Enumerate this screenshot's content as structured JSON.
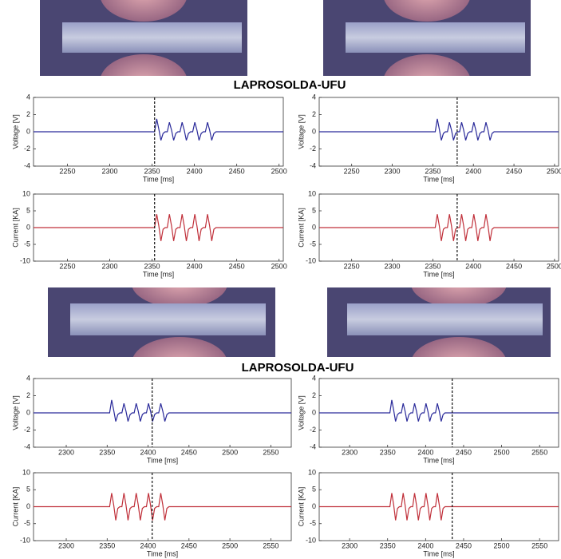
{
  "labels": [
    "LAPROSOLDA-UFU",
    "LAPROSOLDA-UFU"
  ],
  "chart_data": [
    {
      "type": "line",
      "ylabel": "Voltage [V]",
      "xlabel": "Time [ms]",
      "xlim": [
        2210,
        2505
      ],
      "xticks": [
        2250,
        2300,
        2350,
        2400,
        2450,
        2500
      ],
      "ylim": [
        -4,
        4
      ],
      "yticks": [
        -4,
        -2,
        0,
        2,
        4
      ],
      "marker_x": 2353,
      "x": [
        2210,
        2353,
        2355.5,
        2358,
        2360.5,
        2363,
        2365.5,
        2368,
        2370.5,
        2373,
        2375.5,
        2378,
        2380.5,
        2383,
        2385.5,
        2388,
        2390.5,
        2393,
        2395.5,
        2398,
        2400.5,
        2403,
        2405.5,
        2408,
        2410.5,
        2413,
        2415.5,
        2418,
        2420.5,
        2423,
        2425.5,
        2428,
        2505
      ],
      "series": [
        {
          "color": "#2a2a9a",
          "values": [
            0,
            0,
            1.5,
            0.3,
            -1.0,
            -0.2,
            0,
            0,
            1.1,
            0.2,
            -1.0,
            -0.2,
            0,
            0,
            1.1,
            0.2,
            -1.0,
            -0.2,
            0,
            0,
            1.1,
            0.2,
            -1.0,
            -0.2,
            0,
            0,
            1.1,
            0.2,
            -1.0,
            -0.2,
            0,
            0,
            0
          ]
        }
      ]
    },
    {
      "type": "line",
      "ylabel": "Voltage [V]",
      "xlabel": "Time [ms]",
      "xlim": [
        2210,
        2505
      ],
      "xticks": [
        2250,
        2300,
        2350,
        2400,
        2450,
        2500
      ],
      "ylim": [
        -4,
        4
      ],
      "yticks": [
        -4,
        -2,
        0,
        2,
        4
      ],
      "marker_x": 2380,
      "x": [
        2210,
        2353,
        2355.5,
        2358,
        2360.5,
        2363,
        2365.5,
        2368,
        2370.5,
        2373,
        2375.5,
        2378,
        2380.5,
        2383,
        2385.5,
        2388,
        2390.5,
        2393,
        2395.5,
        2398,
        2400.5,
        2403,
        2405.5,
        2408,
        2410.5,
        2413,
        2415.5,
        2418,
        2420.5,
        2423,
        2425.5,
        2428,
        2505
      ],
      "series": [
        {
          "color": "#2a2a9a",
          "values": [
            0,
            0,
            1.5,
            0.3,
            -1.0,
            -0.2,
            0,
            0,
            1.1,
            0.2,
            -1.0,
            -0.2,
            0,
            0,
            1.1,
            0.2,
            -1.0,
            -0.2,
            0,
            0,
            1.1,
            0.2,
            -1.0,
            -0.2,
            0,
            0,
            1.1,
            0.2,
            -1.0,
            -0.2,
            0,
            0,
            0
          ]
        }
      ]
    },
    {
      "type": "line",
      "ylabel": "Current [KA]",
      "xlabel": "Time [ms]",
      "xlim": [
        2210,
        2505
      ],
      "xticks": [
        2250,
        2300,
        2350,
        2400,
        2450,
        2500
      ],
      "ylim": [
        -10,
        10
      ],
      "yticks": [
        -10,
        -5,
        0,
        5,
        10
      ],
      "marker_x": 2353,
      "x": [
        2210,
        2353,
        2355.5,
        2358,
        2360.5,
        2363,
        2365.5,
        2368,
        2370.5,
        2373,
        2375.5,
        2378,
        2380.5,
        2383,
        2385.5,
        2388,
        2390.5,
        2393,
        2395.5,
        2398,
        2400.5,
        2403,
        2405.5,
        2408,
        2410.5,
        2413,
        2415.5,
        2418,
        2420.5,
        2423,
        2425.5,
        2428,
        2505
      ],
      "series": [
        {
          "color": "#c0303a",
          "values": [
            0,
            0,
            4,
            0.5,
            -4,
            -0.5,
            0,
            0,
            4,
            0.5,
            -4,
            -0.5,
            0,
            0,
            4,
            0.5,
            -4,
            -0.5,
            0,
            0,
            4,
            0.5,
            -4,
            -0.5,
            0,
            0,
            4,
            0.5,
            -4,
            -0.5,
            0,
            0,
            0
          ]
        }
      ]
    },
    {
      "type": "line",
      "ylabel": "Current [KA]",
      "xlabel": "Time [ms]",
      "xlim": [
        2210,
        2505
      ],
      "xticks": [
        2250,
        2300,
        2350,
        2400,
        2450,
        2500
      ],
      "ylim": [
        -10,
        10
      ],
      "yticks": [
        -10,
        -5,
        0,
        5,
        10
      ],
      "marker_x": 2380,
      "x": [
        2210,
        2353,
        2355.5,
        2358,
        2360.5,
        2363,
        2365.5,
        2368,
        2370.5,
        2373,
        2375.5,
        2378,
        2380.5,
        2383,
        2385.5,
        2388,
        2390.5,
        2393,
        2395.5,
        2398,
        2400.5,
        2403,
        2405.5,
        2408,
        2410.5,
        2413,
        2415.5,
        2418,
        2420.5,
        2423,
        2425.5,
        2428,
        2505
      ],
      "series": [
        {
          "color": "#c0303a",
          "values": [
            0,
            0,
            4,
            0.5,
            -4,
            -0.5,
            0,
            0,
            4,
            0.5,
            -4,
            -0.5,
            0,
            0,
            4,
            0.5,
            -4,
            -0.5,
            0,
            0,
            4,
            0.5,
            -4,
            -0.5,
            0,
            0,
            4,
            0.5,
            -4,
            -0.5,
            0,
            0,
            0
          ]
        }
      ]
    },
    {
      "type": "line",
      "ylabel": "Voltage [V]",
      "xlabel": "Time [ms]",
      "xlim": [
        2260,
        2575
      ],
      "xticks": [
        2300,
        2350,
        2400,
        2450,
        2500,
        2550
      ],
      "ylim": [
        -4,
        4
      ],
      "yticks": [
        -4,
        -2,
        0,
        2,
        4
      ],
      "marker_x": 2405,
      "x": [
        2260,
        2353,
        2355.5,
        2358,
        2360.5,
        2363,
        2365.5,
        2368,
        2370.5,
        2373,
        2375.5,
        2378,
        2380.5,
        2383,
        2385.5,
        2388,
        2390.5,
        2393,
        2395.5,
        2398,
        2400.5,
        2403,
        2405.5,
        2408,
        2410.5,
        2413,
        2415.5,
        2418,
        2420.5,
        2423,
        2425.5,
        2428,
        2575
      ],
      "series": [
        {
          "color": "#2a2a9a",
          "values": [
            0,
            0,
            1.5,
            0.3,
            -1.0,
            -0.2,
            0,
            0,
            1.1,
            0.2,
            -1.0,
            -0.2,
            0,
            0,
            1.1,
            0.2,
            -1.0,
            -0.2,
            0,
            0,
            1.1,
            0.2,
            -1.0,
            -0.2,
            0,
            0,
            1.1,
            0.2,
            -1.0,
            -0.2,
            0,
            0,
            0
          ]
        }
      ]
    },
    {
      "type": "line",
      "ylabel": "Voltage [V]",
      "xlabel": "Time [ms]",
      "xlim": [
        2260,
        2575
      ],
      "xticks": [
        2300,
        2350,
        2400,
        2450,
        2500,
        2550
      ],
      "ylim": [
        -4,
        4
      ],
      "yticks": [
        -4,
        -2,
        0,
        2,
        4
      ],
      "marker_x": 2435,
      "x": [
        2260,
        2353,
        2355.5,
        2358,
        2360.5,
        2363,
        2365.5,
        2368,
        2370.5,
        2373,
        2375.5,
        2378,
        2380.5,
        2383,
        2385.5,
        2388,
        2390.5,
        2393,
        2395.5,
        2398,
        2400.5,
        2403,
        2405.5,
        2408,
        2410.5,
        2413,
        2415.5,
        2418,
        2420.5,
        2423,
        2425.5,
        2428,
        2575
      ],
      "series": [
        {
          "color": "#2a2a9a",
          "values": [
            0,
            0,
            1.5,
            0.3,
            -1.0,
            -0.2,
            0,
            0,
            1.1,
            0.2,
            -1.0,
            -0.2,
            0,
            0,
            1.1,
            0.2,
            -1.0,
            -0.2,
            0,
            0,
            1.1,
            0.2,
            -1.0,
            -0.2,
            0,
            0,
            1.1,
            0.2,
            -1.0,
            -0.2,
            0,
            0,
            0
          ]
        }
      ]
    },
    {
      "type": "line",
      "ylabel": "Current [KA]",
      "xlabel": "Time [ms]",
      "xlim": [
        2260,
        2575
      ],
      "xticks": [
        2300,
        2350,
        2400,
        2450,
        2500,
        2550
      ],
      "ylim": [
        -10,
        10
      ],
      "yticks": [
        -10,
        -5,
        0,
        5,
        10
      ],
      "marker_x": 2405,
      "x": [
        2260,
        2353,
        2355.5,
        2358,
        2360.5,
        2363,
        2365.5,
        2368,
        2370.5,
        2373,
        2375.5,
        2378,
        2380.5,
        2383,
        2385.5,
        2388,
        2390.5,
        2393,
        2395.5,
        2398,
        2400.5,
        2403,
        2405.5,
        2408,
        2410.5,
        2413,
        2415.5,
        2418,
        2420.5,
        2423,
        2425.5,
        2428,
        2575
      ],
      "series": [
        {
          "color": "#c0303a",
          "values": [
            0,
            0,
            4,
            0.5,
            -4,
            -0.5,
            0,
            0,
            4,
            0.5,
            -4,
            -0.5,
            0,
            0,
            4,
            0.5,
            -4,
            -0.5,
            0,
            0,
            4,
            0.5,
            -4,
            -0.5,
            0,
            0,
            4,
            0.5,
            -4,
            -0.5,
            0,
            0,
            0
          ]
        }
      ]
    },
    {
      "type": "line",
      "ylabel": "Current [KA]",
      "xlabel": "Time [ms]",
      "xlim": [
        2260,
        2575
      ],
      "xticks": [
        2300,
        2350,
        2400,
        2450,
        2500,
        2550
      ],
      "ylim": [
        -10,
        10
      ],
      "yticks": [
        -10,
        -5,
        0,
        5,
        10
      ],
      "marker_x": 2435,
      "x": [
        2260,
        2353,
        2355.5,
        2358,
        2360.5,
        2363,
        2365.5,
        2368,
        2370.5,
        2373,
        2375.5,
        2378,
        2380.5,
        2383,
        2385.5,
        2388,
        2390.5,
        2393,
        2395.5,
        2398,
        2400.5,
        2403,
        2405.5,
        2408,
        2410.5,
        2413,
        2415.5,
        2418,
        2420.5,
        2423,
        2425.5,
        2428,
        2575
      ],
      "series": [
        {
          "color": "#c0303a",
          "values": [
            0,
            0,
            4,
            0.5,
            -4,
            -0.5,
            0,
            0,
            4,
            0.5,
            -4,
            -0.5,
            0,
            0,
            4,
            0.5,
            -4,
            -0.5,
            0,
            0,
            4,
            0.5,
            -4,
            -0.5,
            0,
            0,
            4,
            0.5,
            -4,
            -0.5,
            0,
            0,
            0
          ]
        }
      ]
    }
  ]
}
